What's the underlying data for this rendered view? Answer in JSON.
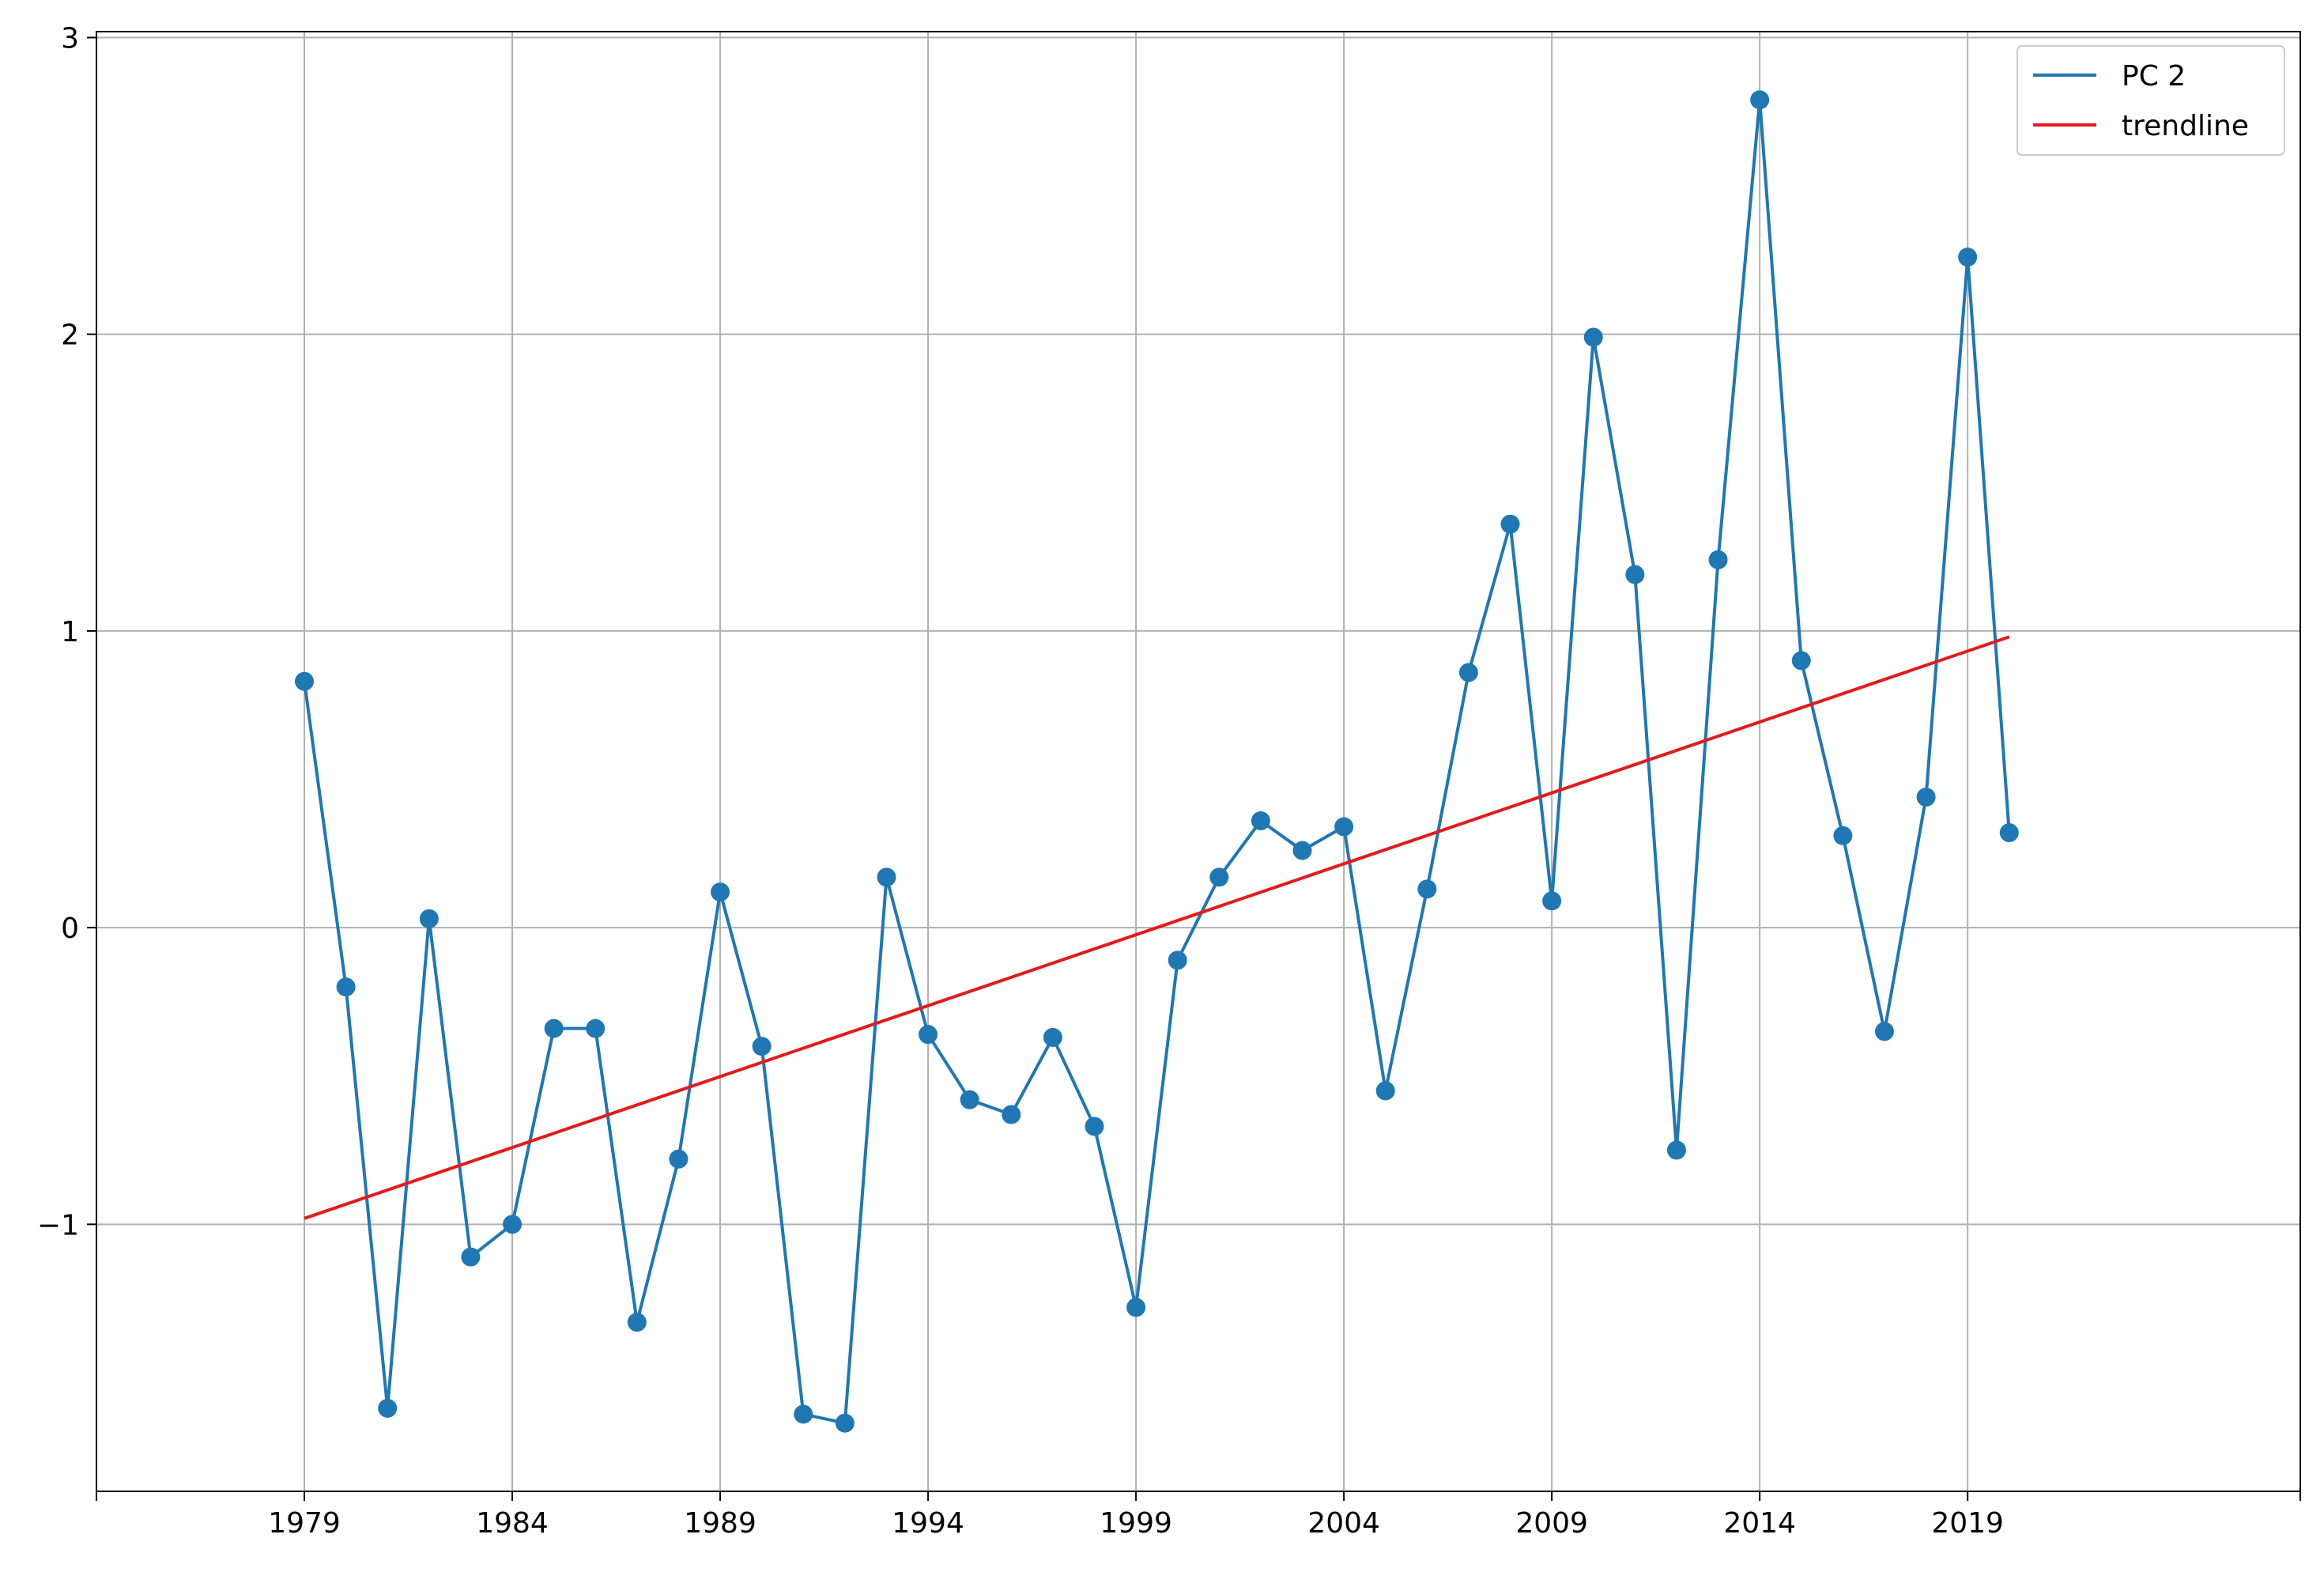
{
  "chart_data": {
    "type": "line",
    "title": "",
    "xlabel": "",
    "ylabel": "",
    "xlim": [
      1974,
      2027
    ],
    "ylim": [
      -1.9,
      3.02
    ],
    "grid": true,
    "legend_position": "top-right",
    "x_ticks": [
      1979,
      1984,
      1989,
      1994,
      1999,
      2004,
      2009,
      2014,
      2019
    ],
    "x_tick_labels": [
      "1979",
      "1984",
      "1989",
      "1994",
      "1999",
      "2004",
      "2009",
      "2014",
      "2019"
    ],
    "y_ticks": [
      -1,
      0,
      1,
      2,
      3
    ],
    "y_tick_labels": [
      "−1",
      "0",
      "1",
      "2",
      "3"
    ],
    "series": [
      {
        "name": "PC 2",
        "color": "#1f77b4",
        "marker": "circle",
        "x": [
          1979,
          1980,
          1981,
          1982,
          1983,
          1984,
          1985,
          1986,
          1987,
          1988,
          1989,
          1990,
          1991,
          1992,
          1993,
          1994,
          1995,
          1996,
          1997,
          1998,
          1999,
          2000,
          2001,
          2002,
          2003,
          2004,
          2005,
          2006,
          2007,
          2008,
          2009,
          2010,
          2011,
          2012,
          2013,
          2014,
          2015,
          2016,
          2017,
          2018,
          2019,
          2020
        ],
        "values": [
          0.83,
          -0.2,
          -1.62,
          0.03,
          -1.11,
          -1.0,
          -0.34,
          -0.34,
          -1.33,
          -0.78,
          0.12,
          -0.4,
          -1.64,
          -1.67,
          0.17,
          -0.36,
          -0.58,
          -0.63,
          -0.37,
          -0.67,
          -1.28,
          -0.11,
          0.17,
          0.36,
          0.26,
          0.34,
          -0.55,
          0.13,
          0.86,
          1.36,
          0.09,
          1.99,
          1.19,
          -0.75,
          1.24,
          2.79,
          0.9,
          0.31,
          -0.35,
          0.44,
          2.26,
          0.32
        ]
      },
      {
        "name": "trendline",
        "color": "#e41a1c",
        "x": [
          1979,
          2020
        ],
        "values": [
          -0.98,
          0.98
        ]
      }
    ]
  }
}
